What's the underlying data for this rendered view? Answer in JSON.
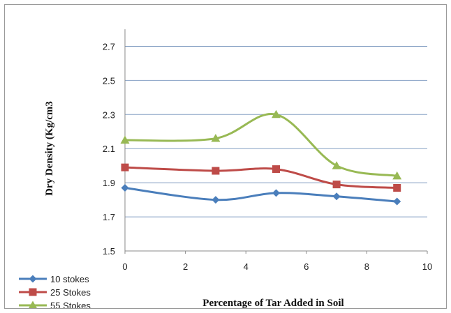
{
  "chart_data": {
    "type": "line",
    "title": "",
    "xlabel": "Percentage of Tar Added in Soil",
    "ylabel": "Dry Density (Kg/cm3",
    "x": [
      0,
      3,
      5,
      7,
      9
    ],
    "xlim": [
      0,
      10
    ],
    "ylim": [
      1.5,
      2.8
    ],
    "x_ticks": [
      "0",
      "2",
      "4",
      "6",
      "8",
      "10"
    ],
    "y_ticks": [
      "1.5",
      "1.7",
      "1.9",
      "2.1",
      "2.3",
      "2.5",
      "2.7"
    ],
    "grid": "horizontal",
    "legend_position": "bottom-left",
    "smooth": true,
    "series": [
      {
        "name": "10 stokes",
        "values": [
          1.87,
          1.8,
          1.84,
          1.82,
          1.79
        ],
        "color": "#4a7ebb",
        "marker": "diamond"
      },
      {
        "name": "25 Stokes",
        "values": [
          1.99,
          1.97,
          1.98,
          1.89,
          1.87
        ],
        "color": "#be4b48",
        "marker": "square"
      },
      {
        "name": "55 Stokes",
        "values": [
          2.15,
          2.16,
          2.3,
          2.0,
          1.94
        ],
        "color": "#98b954",
        "marker": "triangle"
      }
    ]
  }
}
